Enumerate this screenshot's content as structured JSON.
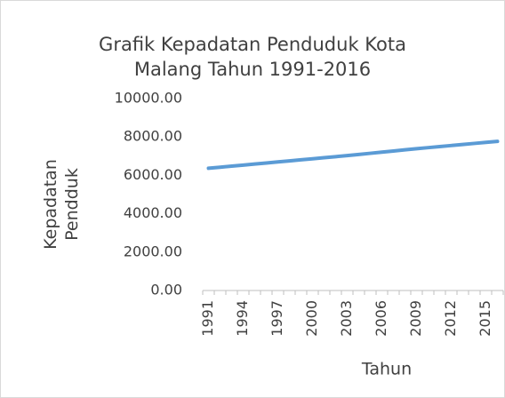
{
  "chart_data": {
    "type": "line",
    "title": "Grafik Kepadatan Penduduk Kota Malang Tahun 1991-2016",
    "x_label": "Tahun",
    "y_label": "Kepadatan Pendduk",
    "categories": [
      "1991",
      null,
      null,
      "1994",
      null,
      null,
      "1997",
      null,
      null,
      "2000",
      null,
      null,
      "2003",
      null,
      null,
      "2006",
      null,
      null,
      "2009",
      null,
      null,
      "2012",
      null,
      null,
      "2015",
      null
    ],
    "series": [
      {
        "name": "Kepadatan Penduduk",
        "color": "#5b9bd5",
        "values": [
          6370,
          6425,
          6480,
          6535,
          6590,
          6645,
          6700,
          6755,
          6810,
          6865,
          6920,
          6975,
          7030,
          7090,
          7150,
          7210,
          7270,
          7330,
          7390,
          7445,
          7500,
          7555,
          7610,
          7665,
          7720,
          7770
        ]
      }
    ],
    "ylim": [
      0,
      10000
    ],
    "yticks": [
      {
        "value": 0,
        "label": "0.00"
      },
      {
        "value": 2000,
        "label": "2000.00"
      },
      {
        "value": 4000,
        "label": "4000.00"
      },
      {
        "value": 6000,
        "label": "6000.00"
      },
      {
        "value": 8000,
        "label": "8000.00"
      },
      {
        "value": 10000,
        "label": "10000.00"
      }
    ],
    "grid": false
  }
}
